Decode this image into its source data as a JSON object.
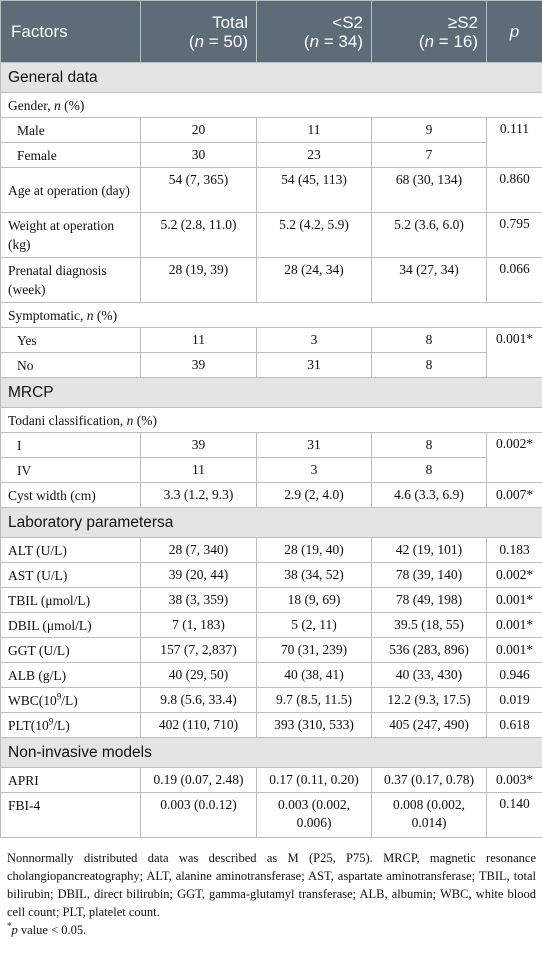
{
  "header": {
    "factors": "Factors",
    "total": "Total",
    "total_n": "(n = 50)",
    "lt_s2": "<S2",
    "lt_s2_n": "(n = 34)",
    "ge_s2": "≥S2",
    "ge_s2_n": "(n = 16)",
    "p": "p"
  },
  "sections": {
    "general": "General data",
    "mrcp": "MRCP",
    "lab": "Laboratory parametersa",
    "noninvasive": "Non-invasive models"
  },
  "rows": {
    "gender": {
      "label": "Gender, n (%)"
    },
    "male": {
      "label": "Male",
      "total": "20",
      "lt": "11",
      "ge": "9",
      "p": "0.111"
    },
    "female": {
      "label": "Female",
      "total": "30",
      "lt": "23",
      "ge": "7"
    },
    "age": {
      "label": "Age at operation (day)",
      "total": "54 (7, 365)",
      "lt": "54 (45, 113)",
      "ge": "68 (30, 134)",
      "p": "0.860"
    },
    "weight": {
      "label": "Weight at operation (kg)",
      "total": "5.2 (2.8, 11.0)",
      "lt": "5.2 (4.2, 5.9)",
      "ge": "5.2 (3.6, 6.0)",
      "p": "0.795"
    },
    "prenatal": {
      "label": "Prenatal diagnosis (week)",
      "total": "28 (19, 39)",
      "lt": "28 (24, 34)",
      "ge": "34 (27, 34)",
      "p": "0.066"
    },
    "symptomatic": {
      "label": "Symptomatic, n (%)"
    },
    "yes": {
      "label": "Yes",
      "total": "11",
      "lt": "3",
      "ge": "8",
      "p": "0.001*"
    },
    "no": {
      "label": "No",
      "total": "39",
      "lt": "31",
      "ge": "8"
    },
    "todani": {
      "label": "Todani classification, n (%)"
    },
    "i": {
      "label": "I",
      "total": "39",
      "lt": "31",
      "ge": "8",
      "p": "0.002*"
    },
    "iv": {
      "label": "IV",
      "total": "11",
      "lt": "3",
      "ge": "8"
    },
    "cyst": {
      "label": "Cyst width (cm)",
      "total": "3.3 (1.2, 9.3)",
      "lt": "2.9 (2, 4.0)",
      "ge": "4.6 (3.3, 6.9)",
      "p": "0.007*"
    },
    "alt": {
      "label": "ALT (U/L)",
      "total": "28 (7, 340)",
      "lt": "28 (19, 40)",
      "ge": "42 (19, 101)",
      "p": "0.183"
    },
    "ast": {
      "label": "AST (U/L)",
      "total": "39 (20, 44)",
      "lt": "38 (34, 52)",
      "ge": "78 (39, 140)",
      "p": "0.002*"
    },
    "tbil": {
      "label": "TBIL (μmol/L)",
      "total": "38 (3, 359)",
      "lt": "18 (9, 69)",
      "ge": "78 (49, 198)",
      "p": "0.001*"
    },
    "dbil": {
      "label": "DBIL (μmol/L)",
      "total": "7 (1, 183)",
      "lt": "5 (2, 11)",
      "ge": "39.5 (18, 55)",
      "p": "0.001*"
    },
    "ggt": {
      "label": "GGT (U/L)",
      "total": "157 (7, 2,837)",
      "lt": "70 (31, 239)",
      "ge": "536 (283, 896)",
      "p": "0.001*"
    },
    "alb": {
      "label": "ALB (g/L)",
      "total": "40 (29, 50)",
      "lt": "40 (38, 41)",
      "ge": "40 (33, 430)",
      "p": "0.946"
    },
    "wbc": {
      "label_pre": "WBC(10",
      "label_sup": "9",
      "label_post": "/L)",
      "total": "9.8 (5.6, 33.4)",
      "lt": "9.7 (8.5, 11.5)",
      "ge": "12.2 (9.3, 17.5)",
      "p": "0.019"
    },
    "plt": {
      "label_pre": "PLT(10",
      "label_sup": "9",
      "label_post": "/L)",
      "total": "402 (110, 710)",
      "lt": "393 (310, 533)",
      "ge": "405 (247, 490)",
      "p": "0.618"
    },
    "apri": {
      "label": "APRI",
      "total": "0.19 (0.07, 2.48)",
      "lt": "0.17 (0.11, 0.20)",
      "ge": "0.37 (0.17, 0.78)",
      "p": "0.003*"
    },
    "fbi4": {
      "label": "FBI-4",
      "total": "0.003 (0.0.12)",
      "lt": "0.003 (0.002, 0.006)",
      "ge": "0.008 (0.002, 0.014)",
      "p": "0.140"
    }
  },
  "footnotes": {
    "note": "Nonnormally distributed data was described as M (P25, P75). MRCP, magnetic resonance cholangiopancreatography; ALT, alanine aminotransferase; AST, aspartate aminotransferase; TBIL, total bilirubin; DBIL, direct bilirubin; GGT, gamma-glutamyl transferase; ALB, albumin; WBC, white blood cell count; PLT, platelet count.",
    "sig_symbol": "*",
    "sig_p": "p",
    "sig_rest": " value < 0.05."
  }
}
